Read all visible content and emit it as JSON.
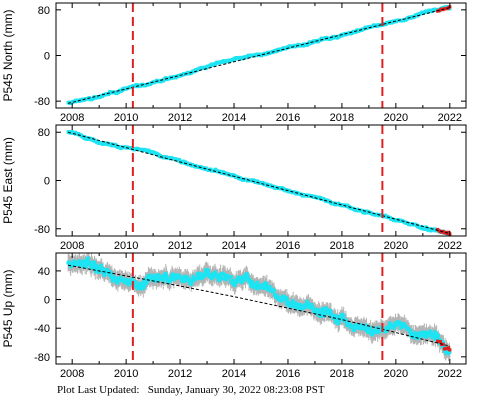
{
  "footer": {
    "label": "Plot Last Updated:",
    "timestamp": "Sunday, January 30, 2022 08:23:08 PST"
  },
  "colors": {
    "data": "#1de4f2",
    "error_bar": "#b4b4b4",
    "model": "#000000",
    "event_line": "#e02020",
    "recent": "#e02020"
  },
  "chart_data": [
    {
      "type": "scatter",
      "ylabel": "P545 North (mm)",
      "xlim": [
        2007.4,
        2022.6
      ],
      "ylim": [
        -92,
        92
      ],
      "xticks": [
        2008,
        2010,
        2012,
        2014,
        2016,
        2018,
        2020,
        2022
      ],
      "yticks": [
        -80,
        0,
        80
      ],
      "event_lines": [
        2010.25,
        2019.5
      ],
      "series": {
        "start": [
          2007.85,
          -84
        ],
        "end": [
          2022.0,
          84
        ],
        "noise": 2.5,
        "error": 2
      }
    },
    {
      "type": "scatter",
      "ylabel": "P545 East (mm)",
      "xlim": [
        2007.4,
        2022.6
      ],
      "ylim": [
        -92,
        92
      ],
      "xticks": [
        2008,
        2010,
        2012,
        2014,
        2016,
        2018,
        2020,
        2022
      ],
      "yticks": [
        -80,
        0,
        80
      ],
      "event_lines": [
        2010.25,
        2019.5
      ],
      "series": {
        "start": [
          2007.85,
          80
        ],
        "end": [
          2022.0,
          -88
        ],
        "noise": 2.5,
        "error": 2
      }
    },
    {
      "type": "scatter",
      "ylabel": "P545 Up (mm)",
      "xlim": [
        2007.4,
        2022.6
      ],
      "ylim": [
        -90,
        65
      ],
      "xticks": [
        2008,
        2010,
        2012,
        2014,
        2016,
        2018,
        2020,
        2022
      ],
      "yticks": [
        -80,
        -40,
        0,
        40
      ],
      "event_lines": [
        2010.25,
        2019.5
      ],
      "model_curve": [
        [
          2007.85,
          48
        ],
        [
          2010,
          33
        ],
        [
          2012,
          19
        ],
        [
          2014,
          4
        ],
        [
          2016,
          -12
        ],
        [
          2018,
          -28
        ],
        [
          2020,
          -46
        ],
        [
          2022,
          -65
        ]
      ],
      "series": {
        "trend": [
          [
            2007.85,
            50
          ],
          [
            2010,
            30
          ],
          [
            2010.6,
            26
          ],
          [
            2011.5,
            34
          ],
          [
            2012.5,
            37
          ],
          [
            2013.5,
            35
          ],
          [
            2014.5,
            25
          ],
          [
            2015.5,
            15
          ],
          [
            2016.5,
            -2
          ],
          [
            2017.5,
            -18
          ],
          [
            2018.5,
            -30
          ],
          [
            2019.5,
            -40
          ],
          [
            2020.5,
            -47
          ],
          [
            2021.5,
            -54
          ],
          [
            2022.0,
            -72
          ]
        ],
        "noise": 8,
        "error": 10
      }
    }
  ]
}
